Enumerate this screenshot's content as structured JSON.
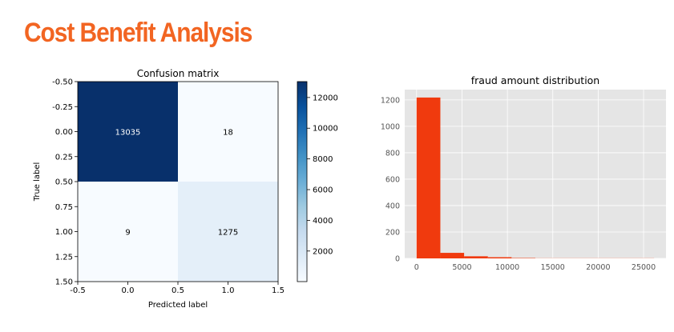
{
  "page": {
    "title": "Cost Benefit Analysis",
    "title_color": "#f26522"
  },
  "chart_data": [
    {
      "type": "heatmap",
      "title": "Confusion matrix",
      "xlabel": "Predicted label",
      "ylabel": "True label",
      "matrix": [
        [
          13035,
          18
        ],
        [
          9,
          1275
        ]
      ],
      "cell_labels": [
        [
          "13035",
          "18"
        ],
        [
          "9",
          "1275"
        ]
      ],
      "xlim": [
        -0.5,
        1.5
      ],
      "ylim": [
        1.5,
        -0.5
      ],
      "xticks": [
        "-0.5",
        "0.0",
        "0.5",
        "1.0",
        "1.5"
      ],
      "yticks": [
        "-0.50",
        "-0.25",
        "0.00",
        "0.25",
        "0.50",
        "0.75",
        "1.00",
        "1.25",
        "1.50"
      ],
      "colormap": "Blues",
      "colorbar": {
        "range": [
          9,
          13035
        ],
        "ticks": [
          2000,
          4000,
          6000,
          8000,
          10000,
          12000
        ],
        "tick_labels": [
          "2000",
          "4000",
          "6000",
          "8000",
          "10000",
          "12000"
        ]
      }
    },
    {
      "type": "bar",
      "subtype": "histogram",
      "title": "fraud amount distribution",
      "bin_edges": [
        0,
        2616,
        5232,
        7848,
        10464,
        13080,
        15696,
        18312,
        20928,
        23544,
        26160
      ],
      "values": [
        1218,
        42,
        16,
        9,
        3,
        1,
        1,
        1,
        1,
        1
      ],
      "xlim": [
        -1308,
        27468
      ],
      "ylim": [
        0,
        1278
      ],
      "xticks": [
        0,
        5000,
        10000,
        15000,
        20000,
        25000
      ],
      "yticks": [
        0,
        200,
        400,
        600,
        800,
        1000,
        1200
      ],
      "bar_color": "#f03a0e",
      "background": "#e5e5e5",
      "grid": true
    }
  ]
}
